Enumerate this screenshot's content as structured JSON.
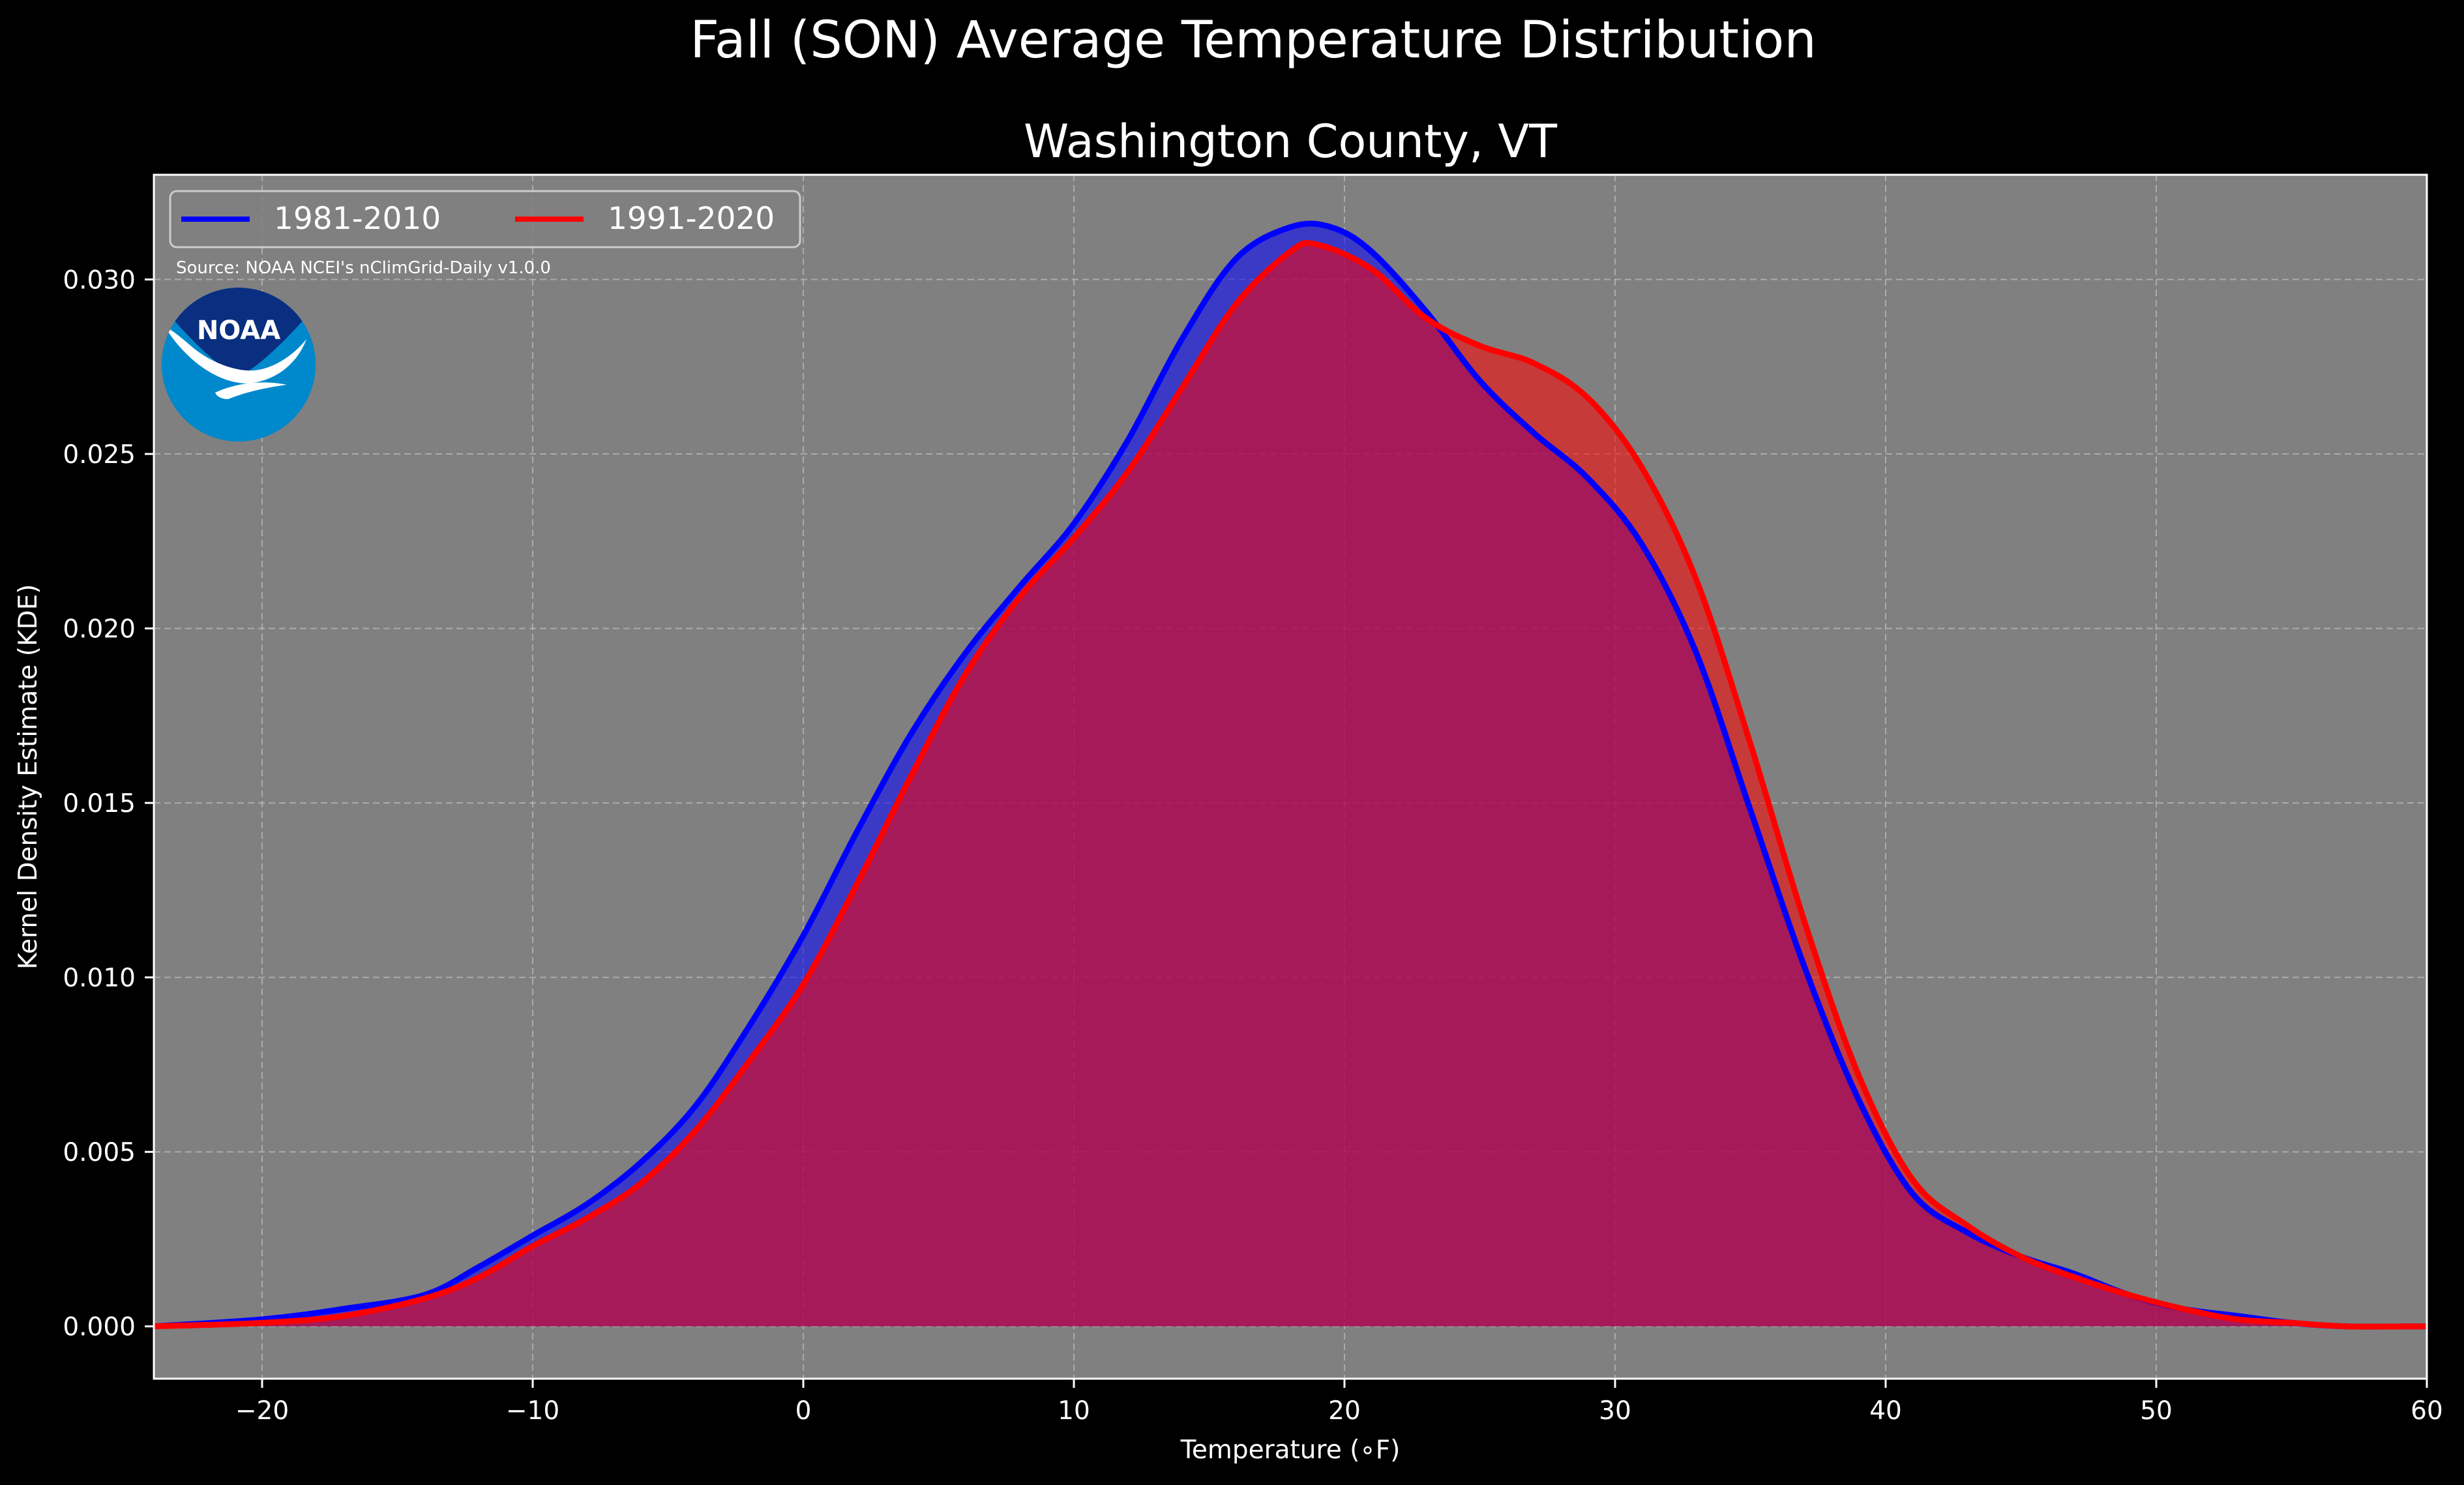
{
  "figure_title": "Fall (SON) Average Temperature Distribution",
  "colors": {
    "background": "#000000",
    "plot_bg": "#808080",
    "series_1981": "#0000ff",
    "series_1991": "#ff0000",
    "overlap_fill": "#a01e5a",
    "noaa_dark": "#0a2f80",
    "noaa_light": "#0088cc"
  },
  "logo": {
    "text": "NOAA",
    "icon": "noaa-logo-icon"
  },
  "chart_data": {
    "type": "area",
    "title": "Washington County, VT",
    "xlabel": "Temperature (∘F)",
    "ylabel": "Kernel Density Estimate (KDE)",
    "xlim": [
      -24,
      60
    ],
    "ylim": [
      -0.0015,
      0.033
    ],
    "x_ticks": [
      -20,
      -10,
      0,
      10,
      20,
      30,
      40,
      50,
      60
    ],
    "y_ticks": [
      0.0,
      0.005,
      0.01,
      0.015,
      0.02,
      0.025,
      0.03
    ],
    "x_tick_labels": [
      "−20",
      "−10",
      "0",
      "10",
      "20",
      "30",
      "40",
      "50",
      "60"
    ],
    "y_tick_labels": [
      "0.000",
      "0.005",
      "0.010",
      "0.015",
      "0.020",
      "0.025",
      "0.030"
    ],
    "grid": true,
    "legend_position": "top-left",
    "annotation": "Source: NOAA NCEI's nClimGrid-Daily v1.0.0",
    "series": [
      {
        "name": "1981-2010",
        "color": "#0000ff",
        "x": [
          -24,
          -20,
          -17,
          -14,
          -12,
          -10,
          -8,
          -6,
          -4,
          -2,
          0,
          2,
          4,
          6,
          8,
          10,
          12,
          14,
          16,
          18,
          19.5,
          21,
          23,
          25,
          27,
          29,
          31,
          33,
          35,
          37,
          39,
          41,
          43,
          45,
          47,
          49,
          51,
          53,
          55,
          57,
          60
        ],
        "y": [
          0.0,
          0.0002,
          0.0005,
          0.0009,
          0.0017,
          0.0026,
          0.0035,
          0.0047,
          0.0063,
          0.0086,
          0.0112,
          0.0142,
          0.017,
          0.0193,
          0.0212,
          0.023,
          0.0254,
          0.0283,
          0.0306,
          0.0315,
          0.0315,
          0.0308,
          0.0291,
          0.0271,
          0.0256,
          0.0243,
          0.0224,
          0.0193,
          0.0148,
          0.0103,
          0.0065,
          0.0038,
          0.0027,
          0.002,
          0.0015,
          0.0009,
          0.0005,
          0.0003,
          0.0001,
          0.0,
          0.0
        ]
      },
      {
        "name": "1991-2020",
        "color": "#ff0000",
        "x": [
          -24,
          -20,
          -17,
          -14,
          -12,
          -10,
          -8,
          -6,
          -4,
          -2,
          0,
          2,
          4,
          6,
          8,
          10,
          12,
          14,
          16,
          18,
          19,
          21,
          23,
          25,
          27,
          29,
          31,
          33,
          35,
          37,
          39,
          41,
          43,
          45,
          47,
          49,
          51,
          53,
          55,
          57,
          60
        ],
        "y": [
          0.0,
          0.0001,
          0.0003,
          0.0008,
          0.0014,
          0.0023,
          0.0031,
          0.0041,
          0.0056,
          0.0076,
          0.0098,
          0.0127,
          0.0158,
          0.0187,
          0.0209,
          0.0226,
          0.0245,
          0.0269,
          0.0293,
          0.0308,
          0.031,
          0.0303,
          0.0289,
          0.0281,
          0.0276,
          0.0266,
          0.0246,
          0.0214,
          0.0167,
          0.0116,
          0.0072,
          0.0042,
          0.0029,
          0.002,
          0.0014,
          0.0009,
          0.0005,
          0.0002,
          0.0001,
          0.0,
          0.0
        ]
      }
    ]
  }
}
